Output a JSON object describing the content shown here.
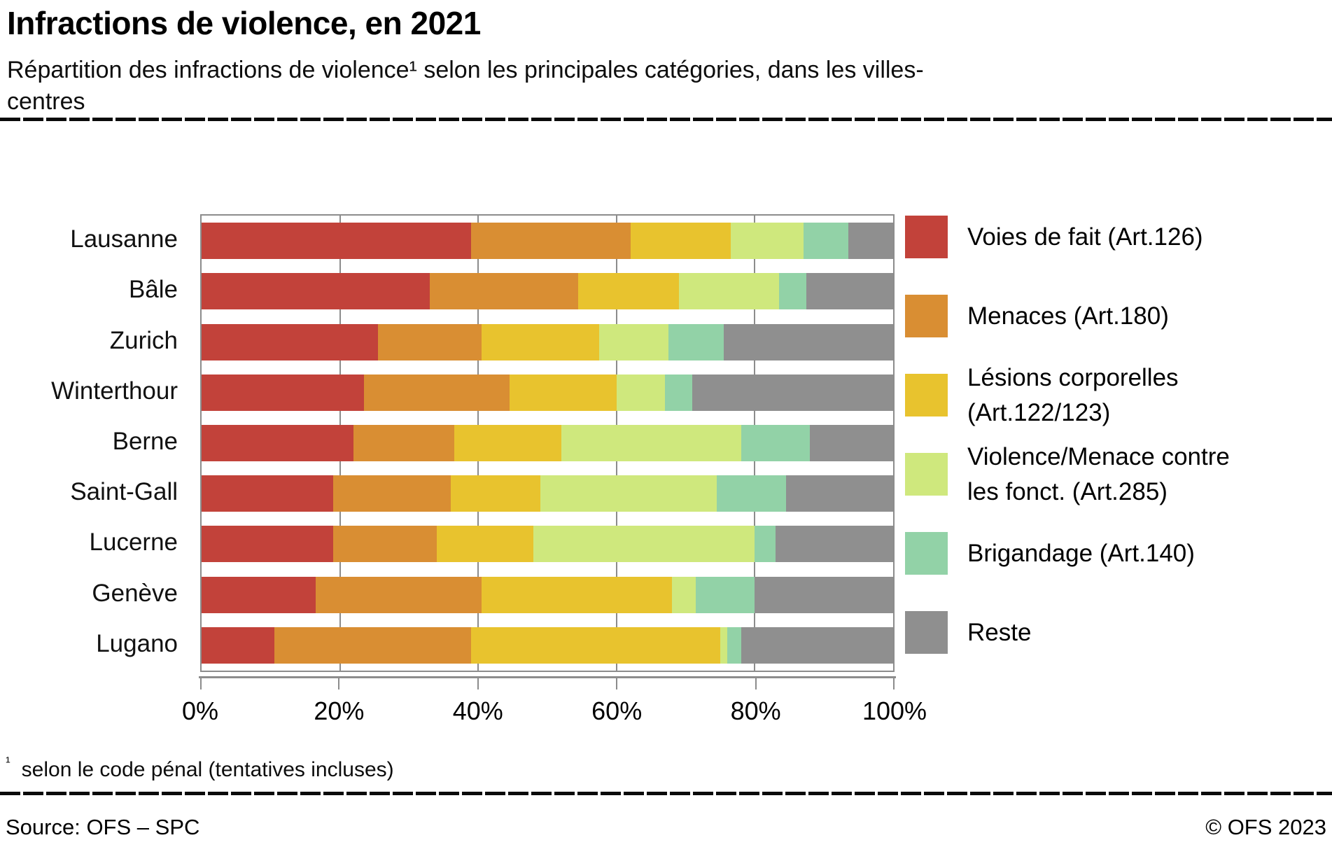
{
  "header": {
    "title": "Infractions de violence, en 2021",
    "subtitle": "Répartition des infractions de violence¹ selon les principales catégories, dans les villes-centres"
  },
  "chart_data": {
    "type": "bar",
    "stacked": true,
    "orientation": "horizontal",
    "unit": "percent",
    "xlim": [
      0,
      100
    ],
    "x_ticks": [
      "0%",
      "20%",
      "40%",
      "60%",
      "80%",
      "100%"
    ],
    "grid": "vertical",
    "legend_position": "right",
    "categories": [
      "Lausanne",
      "Bâle",
      "Zurich",
      "Winterthour",
      "Berne",
      "Saint-Gall",
      "Lucerne",
      "Genève",
      "Lugano"
    ],
    "series": [
      {
        "name": "Voies de fait (Art.126)",
        "legend_lines": [
          "Voies de fait (Art.126)"
        ],
        "color": "#c2423a",
        "values": [
          39,
          33,
          25.5,
          23.5,
          22,
          19,
          19,
          16.5,
          10.5
        ]
      },
      {
        "name": "Menaces (Art.180)",
        "legend_lines": [
          "Menaces (Art.180)"
        ],
        "color": "#d98e33",
        "values": [
          23,
          21.5,
          15,
          21,
          14.5,
          17,
          15,
          24,
          28.5
        ]
      },
      {
        "name": "Lésions corporelles (Art.122/123)",
        "legend_lines": [
          "Lésions corporelles",
          "(Art.122/123)"
        ],
        "color": "#e8c32e",
        "values": [
          14.5,
          14.5,
          17,
          15.5,
          15.5,
          13,
          14,
          27.5,
          36
        ]
      },
      {
        "name": "Violence/Menace contre les fonct. (Art.285)",
        "legend_lines": [
          "Violence/Menace contre",
          "les fonct. (Art.285)"
        ],
        "color": "#cfe87d",
        "values": [
          10.5,
          14.5,
          10,
          7,
          26,
          25.5,
          32,
          3.5,
          1
        ]
      },
      {
        "name": "Brigandage (Art.140)",
        "legend_lines": [
          "Brigandage (Art.140)"
        ],
        "color": "#92d2a7",
        "values": [
          6.5,
          4,
          8,
          4,
          10,
          10,
          3,
          8.5,
          2
        ]
      },
      {
        "name": "Reste",
        "legend_lines": [
          "Reste"
        ],
        "color": "#8f8f8f",
        "values": [
          6.5,
          12.5,
          24.5,
          29,
          12,
          15.5,
          17,
          20,
          22
        ]
      }
    ]
  },
  "footnote": {
    "marker": "¹",
    "text": "selon le code pénal (tentatives incluses)"
  },
  "footer": {
    "source": "Source: OFS – SPC",
    "copyright": "© OFS 2023"
  }
}
